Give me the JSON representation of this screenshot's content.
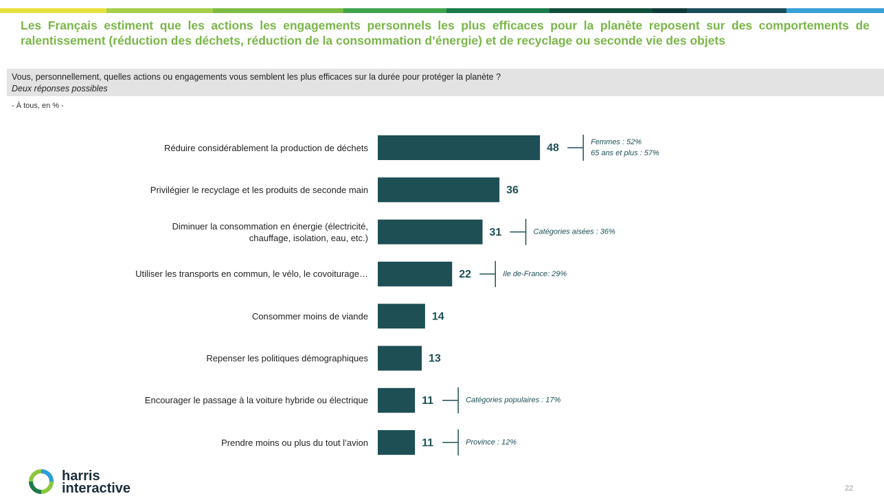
{
  "chart_data": {
    "type": "bar",
    "orientation": "horizontal",
    "title": "Les Français estiment que les actions les engagements personnels les plus efficaces pour la planète reposent sur des comportements de ralentissement (réduction des déchets, réduction de la consommation d’énergie) et de recyclage ou seconde vie des objets",
    "question": "Vous, personnellement, quelles actions ou engagements vous semblent les plus efficaces sur la durée pour protéger la planète ?",
    "subtitle": "Deux réponses possibles",
    "note": "- À tous, en % -",
    "categories": [
      "Réduire considérablement la production de déchets",
      "Privilégier le recyclage et les produits de seconde main",
      "Diminuer la consommation en énergie (électricité, chauffage, isolation, eau, etc.)",
      "Utiliser les transports en commun, le vélo, le covoiturage…",
      "Consommer moins de viande",
      "Repenser les politiques démographiques",
      "Encourager le passage à la voiture hybride ou électrique",
      "Prendre moins ou plus du tout l’avion"
    ],
    "values": [
      48,
      36,
      31,
      22,
      14,
      13,
      11,
      11
    ],
    "color": "#1d4f55",
    "annotations": [
      [
        "Femmes : 52%",
        "65 ans et plus : 57%"
      ],
      null,
      [
        "Catégories aisées : 36%"
      ],
      [
        "Ile de-France: 29%"
      ],
      null,
      null,
      [
        "Catégories populaires : 17%"
      ],
      [
        "Province : 12%"
      ]
    ]
  },
  "footer": {
    "logo": [
      "harris",
      "interactive"
    ],
    "page": "22"
  }
}
